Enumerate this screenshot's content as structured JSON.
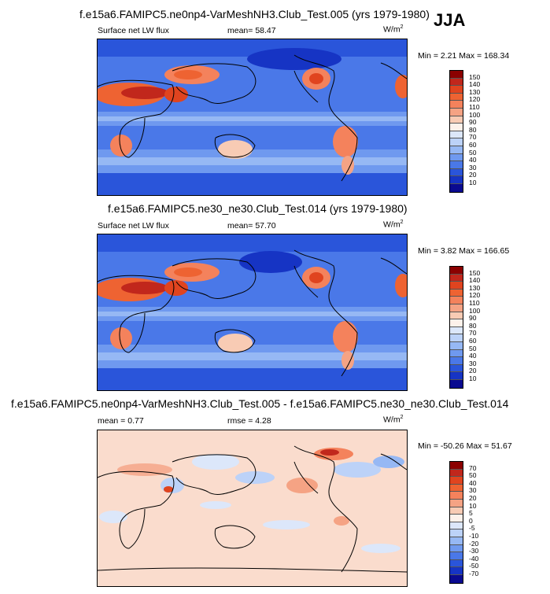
{
  "season": "JJA",
  "panels": [
    {
      "title": "f.e15a6.FAMIPC5.ne0np4-VarMeshNH3.Club_Test.005 (yrs 1979-1980)",
      "left_label": "Surface net LW flux",
      "mean_text": "mean=  58.47",
      "units": "W/m",
      "units_sup": "2",
      "minmax": "Min =   2.21 Max = 168.34",
      "colorbar_labels": [
        "150",
        "140",
        "130",
        "120",
        "110",
        "100",
        "90",
        "80",
        "70",
        "60",
        "50",
        "40",
        "30",
        "20",
        "10"
      ],
      "colorbar_colors": [
        "#8b0000",
        "#c1271c",
        "#e0441f",
        "#ee6332",
        "#f4825c",
        "#f5a384",
        "#f8cbb4",
        "#fdf1ea",
        "#dce7fa",
        "#bcd2f8",
        "#96b8f4",
        "#6f99ef",
        "#4a78e8",
        "#2a55da",
        "#1634c4",
        "#0a0a90"
      ]
    },
    {
      "title": "f.e15a6.FAMIPC5.ne30_ne30.Club_Test.014 (yrs 1979-1980)",
      "left_label": "Surface net LW flux",
      "mean_text": "mean=  57.70",
      "units": "W/m",
      "units_sup": "2",
      "minmax": "Min =   3.82 Max = 166.65",
      "colorbar_labels": [
        "150",
        "140",
        "130",
        "120",
        "110",
        "100",
        "90",
        "80",
        "70",
        "60",
        "50",
        "40",
        "30",
        "20",
        "10"
      ],
      "colorbar_colors": [
        "#8b0000",
        "#c1271c",
        "#e0441f",
        "#ee6332",
        "#f4825c",
        "#f5a384",
        "#f8cbb4",
        "#fdf1ea",
        "#dce7fa",
        "#bcd2f8",
        "#96b8f4",
        "#6f99ef",
        "#4a78e8",
        "#2a55da",
        "#1634c4",
        "#0a0a90"
      ]
    },
    {
      "title": "f.e15a6.FAMIPC5.ne0np4-VarMeshNH3.Club_Test.005 - f.e15a6.FAMIPC5.ne30_ne30.Club_Test.014",
      "left_label": "mean =   0.77",
      "mean_text": "rmse =   4.28",
      "units": "W/m",
      "units_sup": "2",
      "minmax": "Min = -50.26 Max =  51.67",
      "colorbar_labels": [
        "70",
        "50",
        "40",
        "30",
        "20",
        "10",
        "5",
        "0",
        "-5",
        "-10",
        "-20",
        "-30",
        "-40",
        "-50",
        "-70"
      ],
      "colorbar_colors": [
        "#8b0000",
        "#c1271c",
        "#e0441f",
        "#ee6332",
        "#f4825c",
        "#f5a384",
        "#f8cbb4",
        "#fdf1ea",
        "#dce7fa",
        "#bcd2f8",
        "#96b8f4",
        "#6f99ef",
        "#4a78e8",
        "#2a55da",
        "#1634c4",
        "#0a0a90"
      ]
    }
  ]
}
